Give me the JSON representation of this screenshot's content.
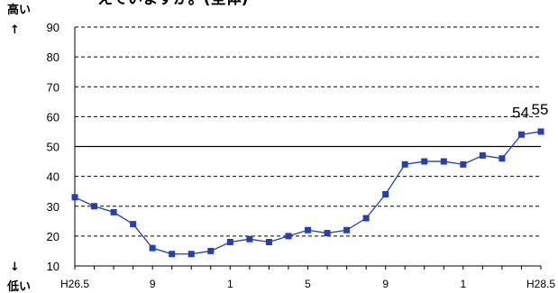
{
  "title_fragment": "えていますか。(全体)",
  "side_labels": {
    "high": "高い",
    "up_arrow": "↑",
    "down_arrow": "↓",
    "low": "低い"
  },
  "chart_data": {
    "type": "line",
    "title": "えていますか。(全体)",
    "xlabel": "",
    "ylabel": "",
    "ylim": [
      10,
      90
    ],
    "yticks": [
      10,
      20,
      30,
      40,
      50,
      60,
      70,
      80,
      90
    ],
    "grid": "horizontal dashed, solid line at 50",
    "x_tick_labels": [
      {
        "index": 0,
        "label": "H26.5"
      },
      {
        "index": 4,
        "label": "9"
      },
      {
        "index": 8,
        "label": "1"
      },
      {
        "index": 12,
        "label": "5"
      },
      {
        "index": 16,
        "label": "9"
      },
      {
        "index": 20,
        "label": "1"
      },
      {
        "index": 24,
        "label": "H28.5"
      }
    ],
    "series": [
      {
        "color": "#1f3fbf",
        "marker": "square",
        "values": [
          33,
          30,
          28,
          24,
          16,
          14,
          14,
          15,
          18,
          19,
          18,
          20,
          22,
          21,
          22,
          26,
          34,
          44,
          45,
          45,
          44,
          47,
          46,
          54,
          55
        ]
      }
    ],
    "data_labels": [
      {
        "index": 23,
        "text": "54"
      },
      {
        "index": 24,
        "text": "55"
      }
    ]
  }
}
